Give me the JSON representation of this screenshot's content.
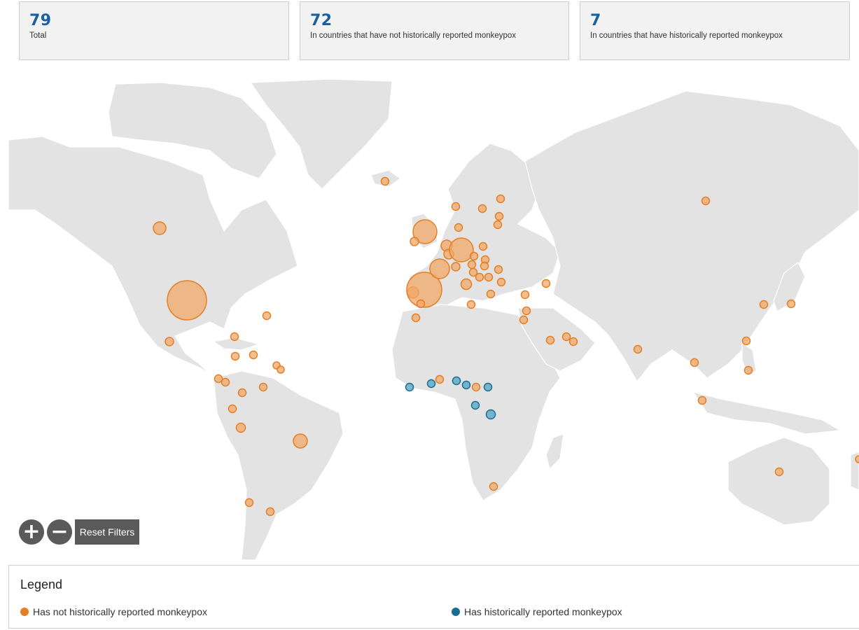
{
  "stats": {
    "total": {
      "value": "79",
      "label": "Total"
    },
    "not_historical": {
      "value": "72",
      "label": "In countries that have not historically reported monkeypox"
    },
    "historical": {
      "value": "7",
      "label": "In countries that have historically reported monkeypox"
    }
  },
  "controls": {
    "zoom_in_symbol": "+",
    "zoom_out_symbol": "−",
    "reset_label": "Reset Filters"
  },
  "legend": {
    "title": "Legend",
    "items": [
      {
        "label": "Has not historically reported monkeypox",
        "color": "#e67e22"
      },
      {
        "label": "Has historically reported monkeypox",
        "color": "#1a6f91"
      }
    ]
  },
  "colors": {
    "accent": "#1b5fa3",
    "not_historical": "#e67e22",
    "historical": "#1a6f91",
    "land": "#e3e3e3"
  }
}
